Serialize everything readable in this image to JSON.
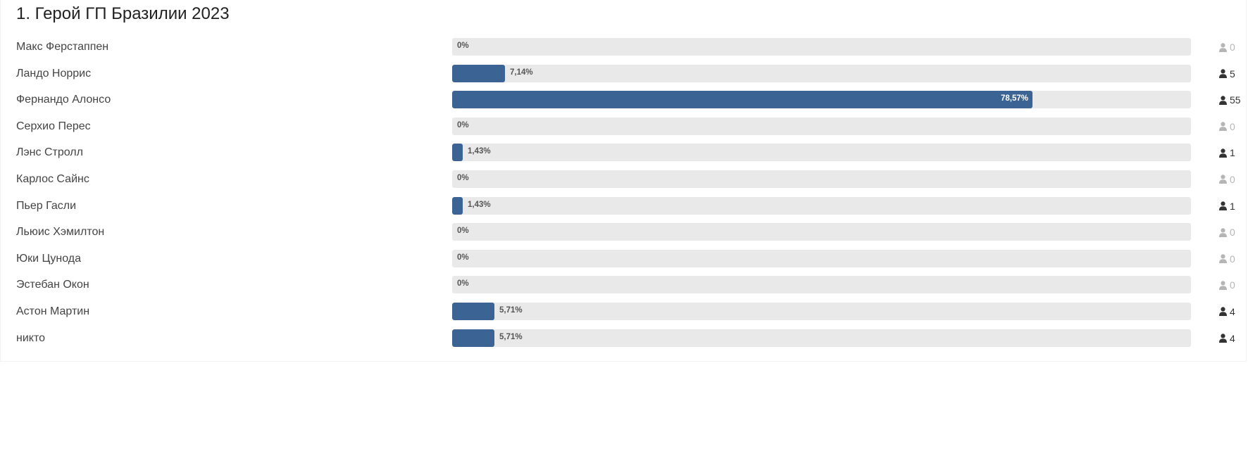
{
  "poll": {
    "title": "1. Герой ГП Бразилии 2023",
    "accent_color": "#3b6494",
    "track_color": "#e9e9e9",
    "options": [
      {
        "label": "Макс Ферстаппен",
        "percent": 0,
        "percent_label": "0%",
        "votes": "0"
      },
      {
        "label": "Ландо Норрис",
        "percent": 7.14,
        "percent_label": "7,14%",
        "votes": "5"
      },
      {
        "label": "Фернандо Алонсо",
        "percent": 78.57,
        "percent_label": "78,57%",
        "votes": "55"
      },
      {
        "label": "Серхио Перес",
        "percent": 0,
        "percent_label": "0%",
        "votes": "0"
      },
      {
        "label": "Лэнс Стролл",
        "percent": 1.43,
        "percent_label": "1,43%",
        "votes": "1"
      },
      {
        "label": "Карлос Сайнс",
        "percent": 0,
        "percent_label": "0%",
        "votes": "0"
      },
      {
        "label": "Пьер Гасли",
        "percent": 1.43,
        "percent_label": "1,43%",
        "votes": "1"
      },
      {
        "label": "Льюис Хэмилтон",
        "percent": 0,
        "percent_label": "0%",
        "votes": "0"
      },
      {
        "label": "Юки Цунода",
        "percent": 0,
        "percent_label": "0%",
        "votes": "0"
      },
      {
        "label": "Эстебан Окон",
        "percent": 0,
        "percent_label": "0%",
        "votes": "0"
      },
      {
        "label": "Астон Мартин",
        "percent": 5.71,
        "percent_label": "5,71%",
        "votes": "4"
      },
      {
        "label": "никто",
        "percent": 5.71,
        "percent_label": "5,71%",
        "votes": "4"
      }
    ],
    "vote_icon": "user-icon"
  }
}
